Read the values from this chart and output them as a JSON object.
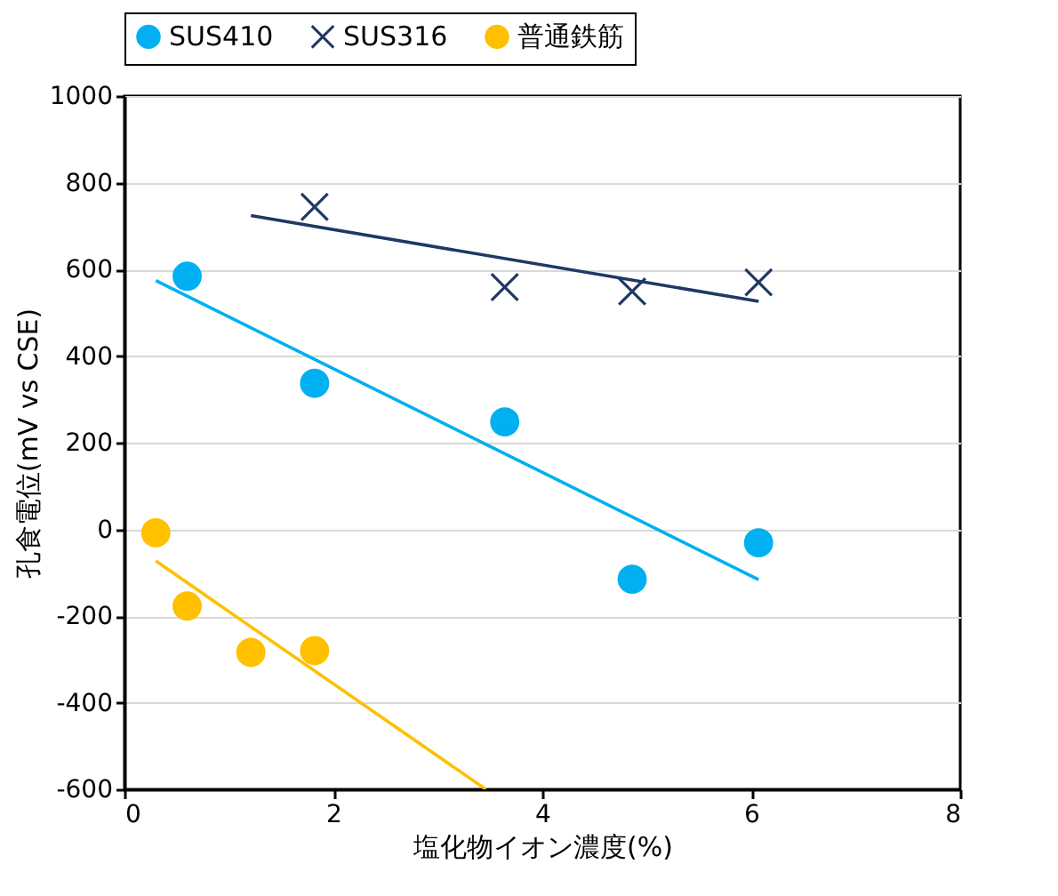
{
  "chart_data": {
    "type": "scatter",
    "xlabel": "塩化物イオン濃度(%)",
    "ylabel": "孔食電位(mV vs CSE)",
    "xlim": [
      0,
      8
    ],
    "xticks": [
      0,
      2,
      4,
      6,
      8
    ],
    "ylim": [
      -600,
      1000
    ],
    "yticks": [
      -600,
      -400,
      -200,
      0,
      200,
      400,
      600,
      800,
      1000
    ],
    "grid": "y",
    "legend": "top",
    "series": [
      {
        "name": "SUS410",
        "type": "scatter",
        "marker": "circle",
        "color": "#00b0f0",
        "x": [
          0.6,
          1.82,
          3.64,
          4.86,
          6.07
        ],
        "values": [
          584,
          337,
          248,
          -115,
          -31
        ]
      },
      {
        "name": "SUS316",
        "type": "scatter",
        "marker": "cross",
        "color": "#1f3864",
        "x": [
          1.82,
          3.64,
          4.86,
          6.07
        ],
        "values": [
          744,
          559,
          549,
          570
        ]
      },
      {
        "name": "普通鉄筋",
        "marker": "circle",
        "color": "#ffc000",
        "x": [
          0.3,
          0.6,
          1.21,
          1.82
        ],
        "values": [
          -8,
          -177,
          -284,
          -280
        ]
      },
      {
        "type": "line",
        "color": "#1f3864",
        "x": [
          1.21,
          6.07
        ],
        "values": [
          724,
          526
        ]
      },
      {
        "type": "line",
        "color": "#00b0f0",
        "x": [
          0.3,
          6.07
        ],
        "values": [
          574,
          -116
        ]
      },
      {
        "type": "line",
        "color": "#ffc000",
        "x": [
          0.3,
          3.46
        ],
        "values": [
          -73,
          -600
        ]
      }
    ]
  }
}
